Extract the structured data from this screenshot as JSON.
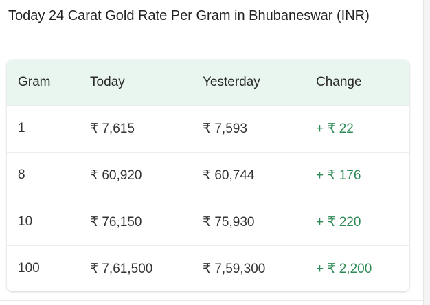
{
  "page": {
    "title": "Today 24 Carat Gold Rate Per Gram in Bhubaneswar (INR)"
  },
  "table": {
    "headers": [
      "Gram",
      "Today",
      "Yesterday",
      "Change"
    ],
    "rows": [
      {
        "gram": "1",
        "today": "₹ 7,615",
        "yesterday": "₹ 7,593",
        "change": "+ ₹ 22"
      },
      {
        "gram": "8",
        "today": "₹ 60,920",
        "yesterday": "₹ 60,744",
        "change": "+ ₹ 176"
      },
      {
        "gram": "10",
        "today": "₹ 76,150",
        "yesterday": "₹ 75,930",
        "change": "+ ₹ 220"
      },
      {
        "gram": "100",
        "today": "₹ 7,61,500",
        "yesterday": "₹ 7,59,300",
        "change": "+ ₹ 2,200"
      }
    ]
  },
  "colors": {
    "header_background": "#e9f6ef",
    "change_positive": "#2e8b57"
  }
}
